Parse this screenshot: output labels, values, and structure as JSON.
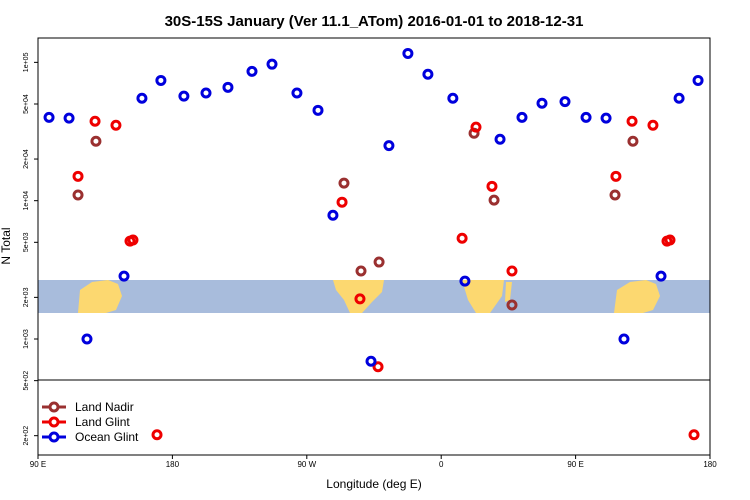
{
  "chart_data": {
    "type": "scatter",
    "title": "30S-15S January (Ver 11.1_ATom)   2016-01-01 to 2018-12-31",
    "x_label": "Longitude (deg E)",
    "y_label": "N Total",
    "xlim": [
      90,
      540
    ],
    "xticks": [
      {
        "value": 90,
        "label": "90 E"
      },
      180,
      {
        "value": 270,
        "label": "90 W"
      },
      {
        "value": 360,
        "label": "0"
      },
      {
        "value": 450,
        "label": "90 E"
      },
      {
        "value": 540,
        "label": "180"
      }
    ],
    "ylim": [
      145,
      150000
    ],
    "y_scale": "log",
    "yticks": [
      {
        "value": 200,
        "label": "2e+02"
      },
      {
        "value": 500,
        "label": "5e+02"
      },
      {
        "value": 1000,
        "label": "1e+03"
      },
      {
        "value": 2000,
        "label": "2e+03"
      },
      {
        "value": 5000,
        "label": "5e+03"
      },
      {
        "value": 10000,
        "label": "1e+04"
      },
      {
        "value": 20000,
        "label": "2e+04"
      },
      {
        "value": 50000,
        "label": "5e+04"
      },
      {
        "value": 100000,
        "label": "1e+05"
      }
    ],
    "legend_position": "bottom-left",
    "series": [
      {
        "name": "Land Nadir",
        "color": "#9a3030",
        "x": [
          116.8,
          128.8,
          294.9,
          306.3,
          318.4,
          382,
          395.4,
          407.4,
          476.4,
          488.4
        ],
        "values": [
          11000,
          26900,
          13400,
          3100,
          3600,
          30700,
          10100,
          1760,
          11000,
          26900
        ]
      },
      {
        "name": "Land Glint",
        "color": "#ee0000",
        "x": [
          116.8,
          128.2,
          142.2,
          151.6,
          153.6,
          169.7,
          293.6,
          305.6,
          317.7,
          374,
          383.3,
          394,
          407.4,
          477,
          487.8,
          501.8,
          511.2,
          513.2,
          529.3
        ],
        "values": [
          15000,
          37500,
          35100,
          5100,
          5200,
          203,
          9750,
          1950,
          630,
          5350,
          34000,
          12700,
          3100,
          15000,
          37500,
          35100,
          5100,
          5200,
          203
        ]
      },
      {
        "name": "Ocean Glint",
        "color": "#0000dd",
        "x": [
          97.4,
          110.8,
          122.8,
          147.6,
          159.6,
          172.3,
          187.7,
          202.5,
          217.2,
          233.3,
          246.7,
          263.4,
          277.5,
          287.5,
          313,
          325,
          337.7,
          351.1,
          367.8,
          375.9,
          399.4,
          414.1,
          427.5,
          442.9,
          457,
          470.4,
          482.4,
          507.2,
          519.3,
          532
        ],
        "values": [
          40000,
          39500,
          1000,
          2850,
          55000,
          74000,
          57000,
          60000,
          66000,
          86000,
          97000,
          60000,
          45000,
          7850,
          690,
          25000,
          116000,
          82000,
          55000,
          2620,
          27800,
          40000,
          50600,
          52000,
          40000,
          39500,
          1000,
          2850,
          55000,
          74000
        ]
      }
    ]
  }
}
